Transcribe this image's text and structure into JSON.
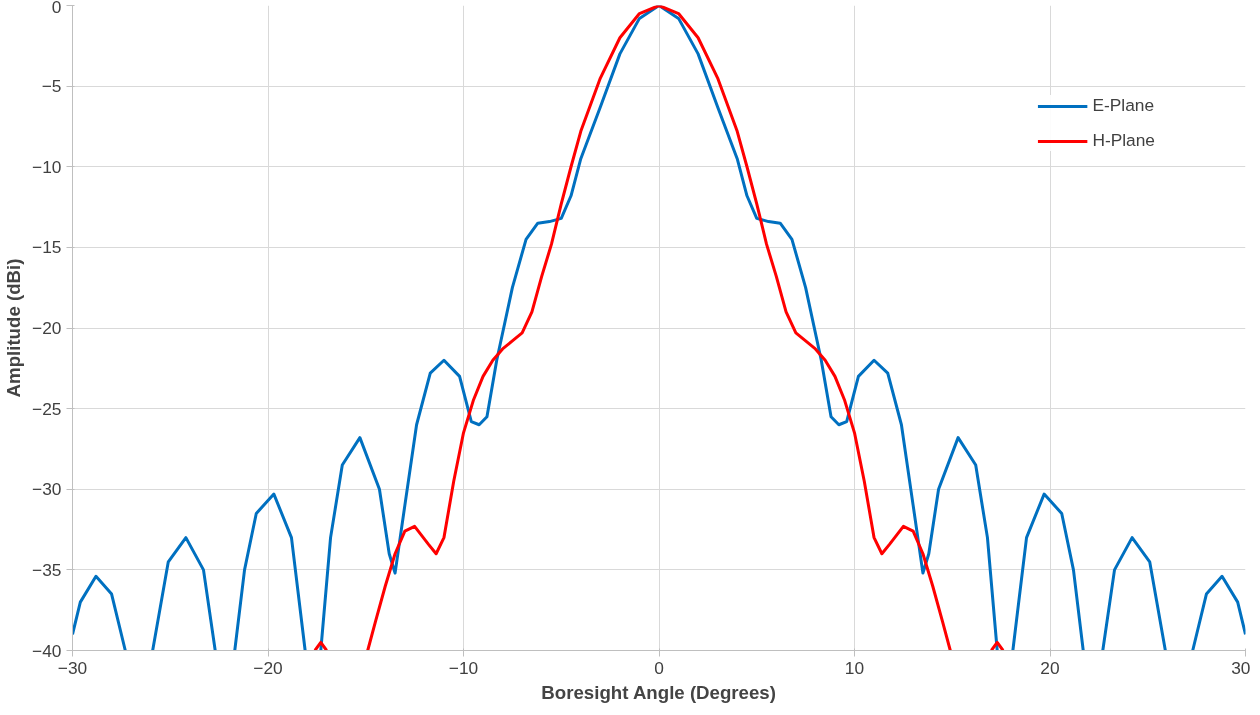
{
  "chart_data": {
    "type": "line",
    "xlabel": "Boresight Angle (Degrees)",
    "ylabel": "Amplitude (dBi)",
    "xlim": [
      -30,
      30
    ],
    "xticks": [
      -30,
      -20,
      -10,
      0,
      10,
      20,
      30
    ],
    "ylim": [
      -40,
      0
    ],
    "yticks": [
      -40,
      -35,
      -30,
      -25,
      -20,
      -15,
      -10,
      -5,
      0
    ],
    "grid": true,
    "legend": "top right",
    "marker": "none",
    "line_style": "solid",
    "series": [
      {
        "name": "E-Plane",
        "color": "#0070c0",
        "x": [
          -30,
          -29.6,
          -28.8,
          -28,
          -27.3,
          -26.6,
          -25.9,
          -25.1,
          -24.2,
          -23.3,
          -22.7,
          -22.2,
          -21.7,
          -21.2,
          -20.6,
          -19.7,
          -18.8,
          -18.1,
          -17.7,
          -17.3,
          -16.8,
          -16.2,
          -15.3,
          -14.3,
          -13.8,
          -13.5,
          -13,
          -12.4,
          -11.7,
          -11,
          -10.2,
          -9.6,
          -9.2,
          -8.8,
          -8.3,
          -7.5,
          -6.8,
          -6.2,
          -5.6,
          -5,
          -4.5,
          -4,
          -3,
          -2,
          -1,
          0,
          1,
          2,
          3,
          4,
          4.5,
          5,
          5.6,
          6.2,
          6.8,
          7.5,
          8.3,
          8.8,
          9.2,
          9.6,
          10.2,
          11,
          11.7,
          12.4,
          13,
          13.5,
          13.8,
          14.3,
          15.3,
          16.2,
          16.8,
          17.3,
          17.7,
          18.1,
          18.8,
          19.7,
          20.6,
          21.2,
          21.7,
          22.2,
          22.7,
          23.3,
          24.2,
          25.1,
          25.9,
          26.6,
          27.3,
          28,
          28.8,
          29.6,
          30
        ],
        "values": [
          -39,
          -37,
          -35.4,
          -36.5,
          -40,
          null,
          -40,
          -34.5,
          -33,
          -35,
          -40,
          null,
          -40,
          -35,
          -31.5,
          -30.3,
          -33,
          -40,
          null,
          -40,
          -33,
          -28.5,
          -26.8,
          -30,
          -34,
          -35.2,
          -31,
          -26,
          -22.8,
          -22,
          -23,
          -25.8,
          -26,
          -25.5,
          -22,
          -17.5,
          -14.5,
          -13.5,
          -13.4,
          -13.2,
          -11.8,
          -9.5,
          -6.3,
          -3,
          -0.8,
          0,
          -0.8,
          -3,
          -6.3,
          -9.5,
          -11.8,
          -13.2,
          -13.4,
          -13.5,
          -14.5,
          -17.5,
          -22,
          -25.5,
          -26,
          -25.8,
          -23,
          -22,
          -22.8,
          -26,
          -31,
          -35.2,
          -34,
          -30,
          -26.8,
          -28.5,
          -33,
          -40,
          null,
          -40,
          -33,
          -30.3,
          -31.5,
          -35,
          -40,
          null,
          -40,
          -35,
          -33,
          -34.5,
          -40,
          null,
          -40,
          -36.5,
          -35.4,
          -37,
          -39
        ]
      },
      {
        "name": "H-Plane",
        "color": "#ff0000",
        "x": [
          -17.6,
          -17.3,
          -17,
          -16,
          -14.9,
          -14.5,
          -14,
          -13.5,
          -13,
          -12.5,
          -11.8,
          -11.4,
          -11,
          -10.5,
          -10,
          -9.5,
          -9,
          -8.5,
          -8,
          -7.5,
          -7,
          -6.5,
          -6,
          -5.5,
          -5,
          -4.5,
          -4,
          -3,
          -2,
          -1,
          0,
          1,
          2,
          3,
          4,
          4.5,
          5,
          5.5,
          6,
          6.5,
          7,
          7.5,
          8,
          8.5,
          9,
          9.5,
          10,
          10.5,
          11,
          11.4,
          11.8,
          12.5,
          13,
          13.5,
          14,
          14.5,
          14.9,
          16,
          17,
          17.3,
          17.6
        ],
        "values": [
          -40,
          -39.5,
          -40,
          null,
          -40,
          -38.2,
          -36,
          -34,
          -32.6,
          -32.3,
          -33.4,
          -34,
          -33,
          -29.5,
          -26.5,
          -24.5,
          -23,
          -22,
          -21.3,
          -20.8,
          -20.3,
          -19,
          -16.8,
          -14.8,
          -12.3,
          -10,
          -7.8,
          -4.5,
          -2,
          -0.5,
          0,
          -0.5,
          -2,
          -4.5,
          -7.8,
          -10,
          -12.3,
          -14.8,
          -16.8,
          -19,
          -20.3,
          -20.8,
          -21.3,
          -22,
          -23,
          -24.5,
          -26.5,
          -29.5,
          -33,
          -34,
          -33.4,
          -32.3,
          -32.6,
          -34,
          -36,
          -38.2,
          -40,
          null,
          -40,
          -39.5,
          -40
        ]
      }
    ]
  }
}
